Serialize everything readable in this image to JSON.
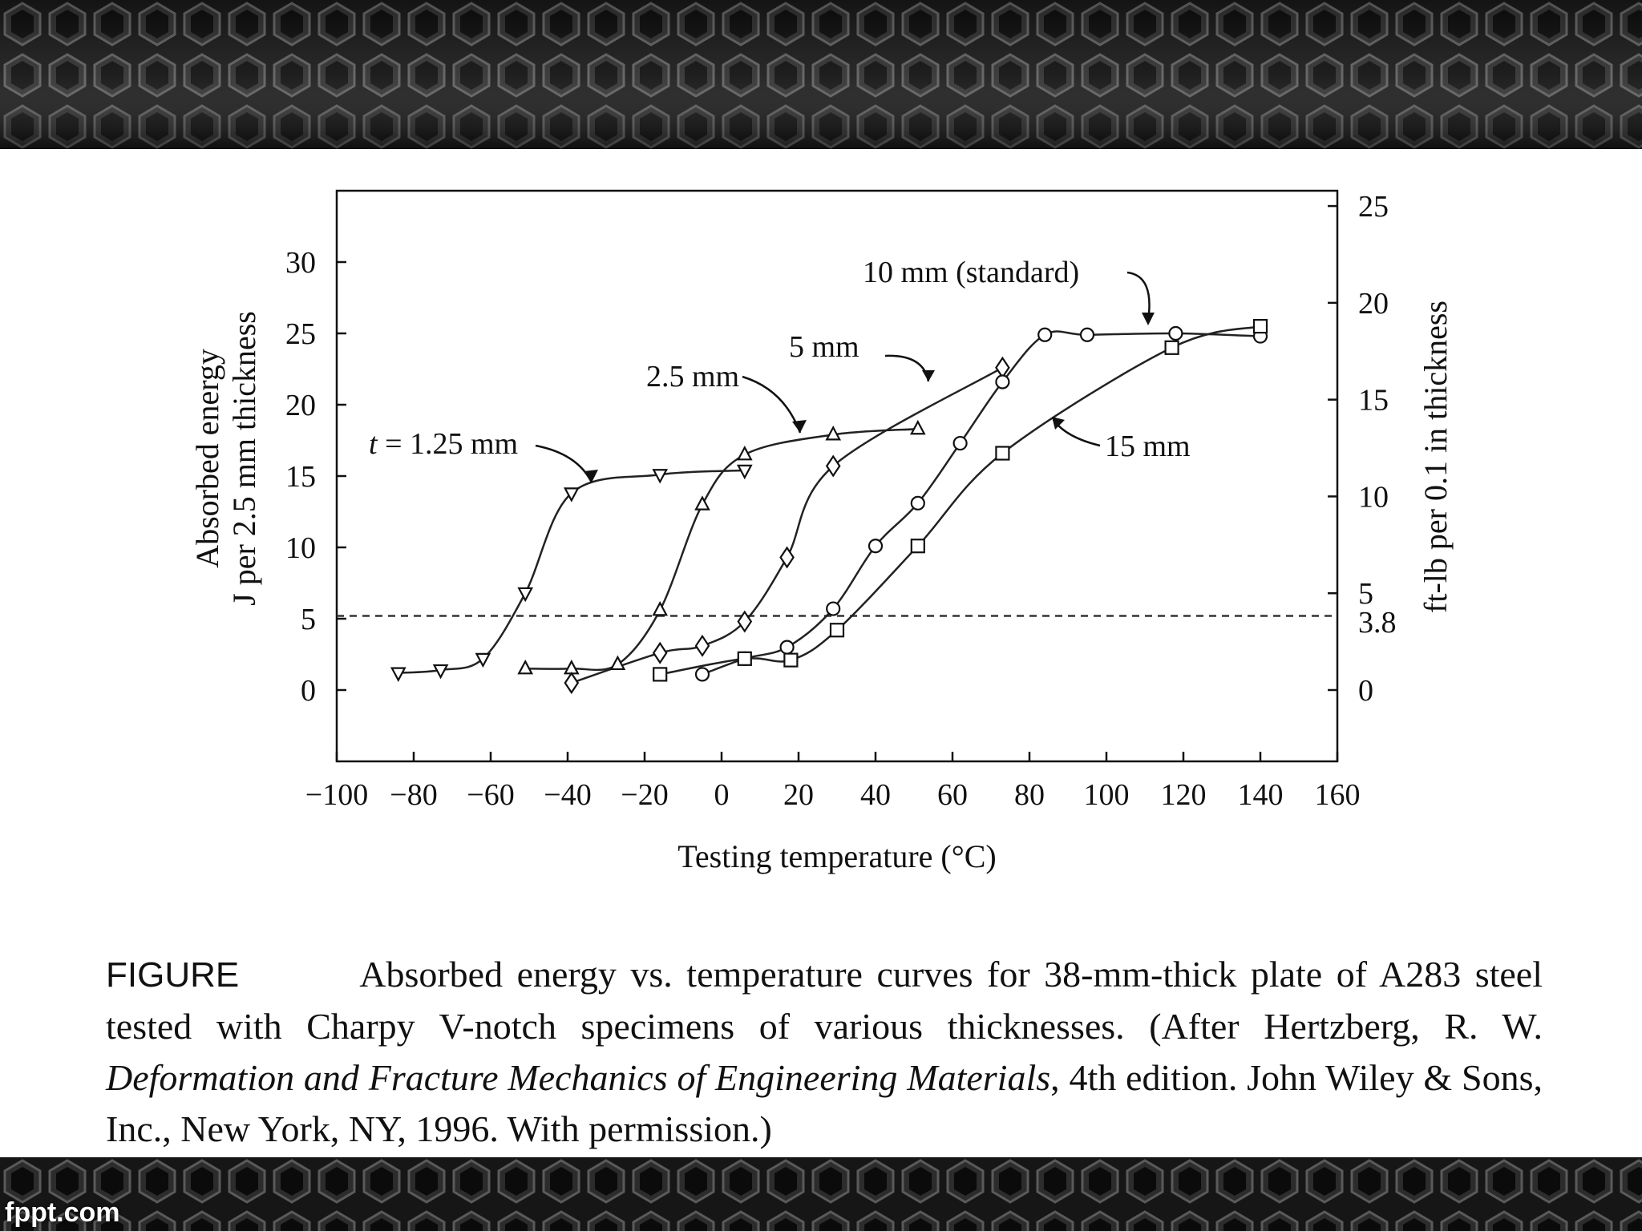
{
  "footer": {
    "watermark": "fppt.com"
  },
  "colors": {
    "band_dark": "#1c1c1c",
    "band_mid": "#3a3a3a",
    "line": "#222222"
  },
  "chart_data": {
    "type": "line",
    "title": "",
    "xlabel": "Testing temperature (°C)",
    "ylabel_line1": "Absorbed energy",
    "ylabel_line2": "J per 2.5 mm thickness",
    "y2label": "ft-lb per 0.1 in thickness",
    "xlim": [
      -100,
      160
    ],
    "ylim": [
      -5,
      35
    ],
    "x_ticks": [
      -100,
      -80,
      -60,
      -40,
      -20,
      0,
      20,
      40,
      60,
      80,
      100,
      120,
      140,
      160
    ],
    "x_tick_labels": [
      "−100",
      "−80",
      "−60",
      "−40",
      "−20",
      "0",
      "20",
      "40",
      "60",
      "80",
      "100",
      "120",
      "140",
      "160"
    ],
    "y_ticks": [
      0,
      5,
      10,
      15,
      20,
      25,
      30
    ],
    "y_tick_labels": [
      "0",
      "5",
      "10",
      "15",
      "20",
      "25",
      "30"
    ],
    "y2_ticks": [
      0,
      5,
      10,
      15,
      20,
      25
    ],
    "y2_tick_labels": [
      "0",
      "5",
      "10",
      "15",
      "20",
      "25"
    ],
    "y2_extra_tick": {
      "value": 3.8,
      "label": "3.8"
    },
    "y2_to_y_factor": 1.3571,
    "reference_line_y": 5.2,
    "series": [
      {
        "name": "t = 1.25 mm",
        "label_prefix": "t",
        "label_text": " = 1.25 mm",
        "marker": "triangle-down",
        "x": [
          -84,
          -73,
          -62,
          -51,
          -39,
          -16,
          6
        ],
        "y": [
          1.2,
          1.4,
          2.2,
          6.8,
          13.8,
          15.1,
          15.4
        ]
      },
      {
        "name": "2.5 mm",
        "label_text": "2.5 mm",
        "marker": "triangle-up",
        "x": [
          -51,
          -39,
          -27,
          -16,
          -5,
          6,
          29,
          51
        ],
        "y": [
          1.5,
          1.5,
          1.8,
          5.6,
          13.0,
          16.5,
          17.9,
          18.3
        ]
      },
      {
        "name": "5 mm",
        "label_text": "5 mm",
        "marker": "diamond",
        "x": [
          -39,
          -16,
          -5,
          6,
          17,
          29,
          73
        ],
        "y": [
          0.5,
          2.6,
          3.1,
          4.8,
          9.3,
          15.7,
          22.6
        ]
      },
      {
        "name": "10 mm (standard)",
        "label_text": "10 mm (standard)",
        "marker": "circle",
        "x": [
          -5,
          6,
          17,
          29,
          40,
          51,
          62,
          73,
          84,
          95,
          118,
          140
        ],
        "y": [
          1.1,
          2.2,
          3.0,
          5.7,
          10.1,
          13.1,
          17.3,
          21.6,
          24.9,
          24.9,
          25.0,
          24.8
        ]
      },
      {
        "name": "15 mm",
        "label_text": "15 mm",
        "marker": "square",
        "x": [
          -16,
          6,
          18,
          30,
          51,
          73,
          117,
          140
        ],
        "y": [
          1.1,
          2.2,
          2.1,
          4.2,
          10.1,
          16.6,
          24.0,
          25.5
        ]
      }
    ]
  },
  "caption": {
    "label": "FIGURE",
    "text1": "Absorbed energy vs. temperature curves for 38-mm-thick plate of A283 steel tested with Charpy V-notch specimens of various thicknesses. (After Hertzberg, R. W. ",
    "italic": "Deformation and Fracture Mechanics of Engineering Materials",
    "text2": ", 4th edition. John Wiley & Sons, Inc., New York, NY, 1996. With permission.)"
  }
}
